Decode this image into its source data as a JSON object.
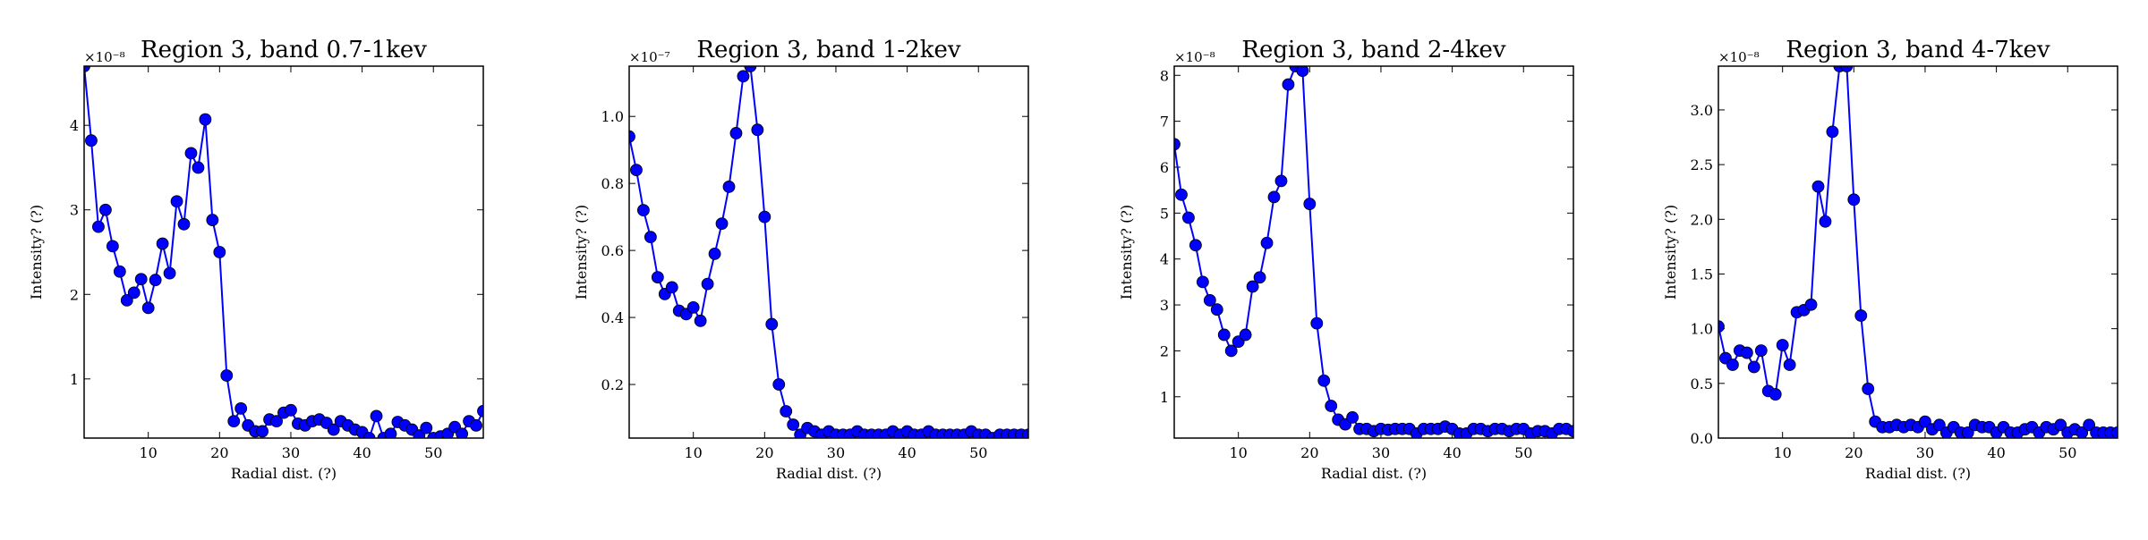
{
  "chart_data": [
    {
      "type": "line",
      "title": "Region 3, band 0.7-1kev",
      "xlabel": "Radial dist. (?)",
      "ylabel": "Intensity? (?)",
      "multiplier": "×10⁻⁸",
      "xlim": [
        1,
        57
      ],
      "ylim": [
        0.3,
        4.7
      ],
      "xticks": [
        10,
        20,
        30,
        40,
        50
      ],
      "yticks": [
        1,
        2,
        3,
        4
      ],
      "grid": false,
      "series": [
        {
          "color": "#0000ff",
          "x": [
            1,
            2,
            3,
            4,
            5,
            6,
            7,
            8,
            9,
            10,
            11,
            12,
            13,
            14,
            15,
            16,
            17,
            18,
            19,
            20,
            21,
            22,
            23,
            24,
            25,
            26,
            27,
            28,
            29,
            30,
            31,
            32,
            33,
            34,
            35,
            36,
            37,
            38,
            39,
            40,
            41,
            42,
            43,
            44,
            45,
            46,
            47,
            48,
            49,
            50,
            51,
            52,
            53,
            54,
            55,
            56,
            57
          ],
          "y": [
            4.7,
            3.82,
            2.8,
            3.0,
            2.57,
            2.27,
            1.93,
            2.02,
            2.18,
            1.84,
            2.17,
            2.6,
            2.25,
            3.1,
            2.83,
            3.67,
            3.5,
            4.07,
            2.88,
            2.5,
            1.04,
            0.5,
            0.65,
            0.45,
            0.38,
            0.38,
            0.52,
            0.5,
            0.6,
            0.63,
            0.47,
            0.45,
            0.5,
            0.52,
            0.48,
            0.4,
            0.5,
            0.45,
            0.4,
            0.37,
            0.3,
            0.56,
            0.3,
            0.35,
            0.49,
            0.45,
            0.4,
            0.33,
            0.42,
            0.3,
            0.32,
            0.35,
            0.43,
            0.35,
            0.5,
            0.45,
            0.62
          ]
        }
      ]
    },
    {
      "type": "line",
      "title": "Region 3, band 1-2kev",
      "xlabel": "Radial dist. (?)",
      "ylabel": "Intensity? (?)",
      "multiplier": "×10⁻⁷",
      "xlim": [
        1,
        57
      ],
      "ylim": [
        0.04,
        1.15
      ],
      "xticks": [
        10,
        20,
        30,
        40,
        50
      ],
      "yticks": [
        0.2,
        0.4,
        0.6,
        0.8,
        1.0
      ],
      "grid": false,
      "series": [
        {
          "color": "#0000ff",
          "x": [
            1,
            2,
            3,
            4,
            5,
            6,
            7,
            8,
            9,
            10,
            11,
            12,
            13,
            14,
            15,
            16,
            17,
            18,
            19,
            20,
            21,
            22,
            23,
            24,
            25,
            26,
            27,
            28,
            29,
            30,
            31,
            32,
            33,
            34,
            35,
            36,
            37,
            38,
            39,
            40,
            41,
            42,
            43,
            44,
            45,
            46,
            47,
            48,
            49,
            50,
            51,
            52,
            53,
            54,
            55,
            56,
            57
          ],
          "y": [
            0.94,
            0.84,
            0.72,
            0.64,
            0.52,
            0.47,
            0.49,
            0.42,
            0.41,
            0.43,
            0.39,
            0.5,
            0.59,
            0.68,
            0.79,
            0.95,
            1.12,
            1.15,
            0.96,
            0.7,
            0.38,
            0.2,
            0.12,
            0.08,
            0.05,
            0.07,
            0.06,
            0.05,
            0.06,
            0.05,
            0.05,
            0.05,
            0.06,
            0.05,
            0.05,
            0.05,
            0.05,
            0.06,
            0.05,
            0.06,
            0.05,
            0.05,
            0.06,
            0.05,
            0.05,
            0.05,
            0.05,
            0.05,
            0.06,
            0.05,
            0.05,
            0.04,
            0.05,
            0.05,
            0.05,
            0.05,
            0.05
          ]
        }
      ]
    },
    {
      "type": "line",
      "title": "Region 3, band 2-4kev",
      "xlabel": "Radial dist. (?)",
      "ylabel": "Intensity? (?)",
      "multiplier": "×10⁻⁸",
      "xlim": [
        1,
        57
      ],
      "ylim": [
        0.1,
        8.2
      ],
      "xticks": [
        10,
        20,
        30,
        40,
        50
      ],
      "yticks": [
        1,
        2,
        3,
        4,
        5,
        6,
        7,
        8
      ],
      "grid": false,
      "series": [
        {
          "color": "#0000ff",
          "x": [
            1,
            2,
            3,
            4,
            5,
            6,
            7,
            8,
            9,
            10,
            11,
            12,
            13,
            14,
            15,
            16,
            17,
            18,
            19,
            20,
            21,
            22,
            23,
            24,
            25,
            26,
            27,
            28,
            29,
            30,
            31,
            32,
            33,
            34,
            35,
            36,
            37,
            38,
            39,
            40,
            41,
            42,
            43,
            44,
            45,
            46,
            47,
            48,
            49,
            50,
            51,
            52,
            53,
            54,
            55,
            56,
            57
          ],
          "y": [
            6.5,
            5.4,
            4.9,
            4.3,
            3.5,
            3.1,
            2.9,
            2.35,
            2.0,
            2.2,
            2.35,
            3.4,
            3.6,
            4.35,
            5.35,
            5.7,
            7.8,
            8.2,
            8.1,
            5.2,
            2.6,
            1.35,
            0.8,
            0.5,
            0.4,
            0.55,
            0.3,
            0.3,
            0.25,
            0.3,
            0.28,
            0.3,
            0.3,
            0.3,
            0.2,
            0.3,
            0.3,
            0.3,
            0.35,
            0.3,
            0.2,
            0.2,
            0.3,
            0.3,
            0.25,
            0.3,
            0.3,
            0.25,
            0.3,
            0.3,
            0.2,
            0.25,
            0.25,
            0.2,
            0.3,
            0.3,
            0.25
          ]
        }
      ]
    },
    {
      "type": "line",
      "title": "Region 3, band 4-7kev",
      "xlabel": "Radial dist. (?)",
      "ylabel": "Intensity? (?)",
      "multiplier": "×10⁻⁸",
      "xlim": [
        1,
        57
      ],
      "ylim": [
        0.0,
        3.4
      ],
      "xticks": [
        10,
        20,
        30,
        40,
        50
      ],
      "yticks": [
        0.0,
        0.5,
        1.0,
        1.5,
        2.0,
        2.5,
        3.0
      ],
      "grid": false,
      "series": [
        {
          "color": "#0000ff",
          "x": [
            1,
            2,
            3,
            4,
            5,
            6,
            7,
            8,
            9,
            10,
            11,
            12,
            13,
            14,
            15,
            16,
            17,
            18,
            19,
            20,
            21,
            22,
            23,
            24,
            25,
            26,
            27,
            28,
            29,
            30,
            31,
            32,
            33,
            34,
            35,
            36,
            37,
            38,
            39,
            40,
            41,
            42,
            43,
            44,
            45,
            46,
            47,
            48,
            49,
            50,
            51,
            52,
            53,
            54,
            55,
            56,
            57
          ],
          "y": [
            1.02,
            0.73,
            0.67,
            0.8,
            0.78,
            0.65,
            0.8,
            0.43,
            0.4,
            0.85,
            0.67,
            1.15,
            1.17,
            1.22,
            2.3,
            1.98,
            2.8,
            3.4,
            3.4,
            2.18,
            1.12,
            0.45,
            0.15,
            0.1,
            0.1,
            0.12,
            0.1,
            0.12,
            0.1,
            0.15,
            0.08,
            0.12,
            0.05,
            0.1,
            0.05,
            0.05,
            0.12,
            0.1,
            0.1,
            0.05,
            0.1,
            0.05,
            0.05,
            0.08,
            0.1,
            0.05,
            0.1,
            0.08,
            0.12,
            0.05,
            0.08,
            0.05,
            0.12,
            0.05,
            0.05,
            0.05,
            0.05
          ]
        }
      ]
    }
  ]
}
